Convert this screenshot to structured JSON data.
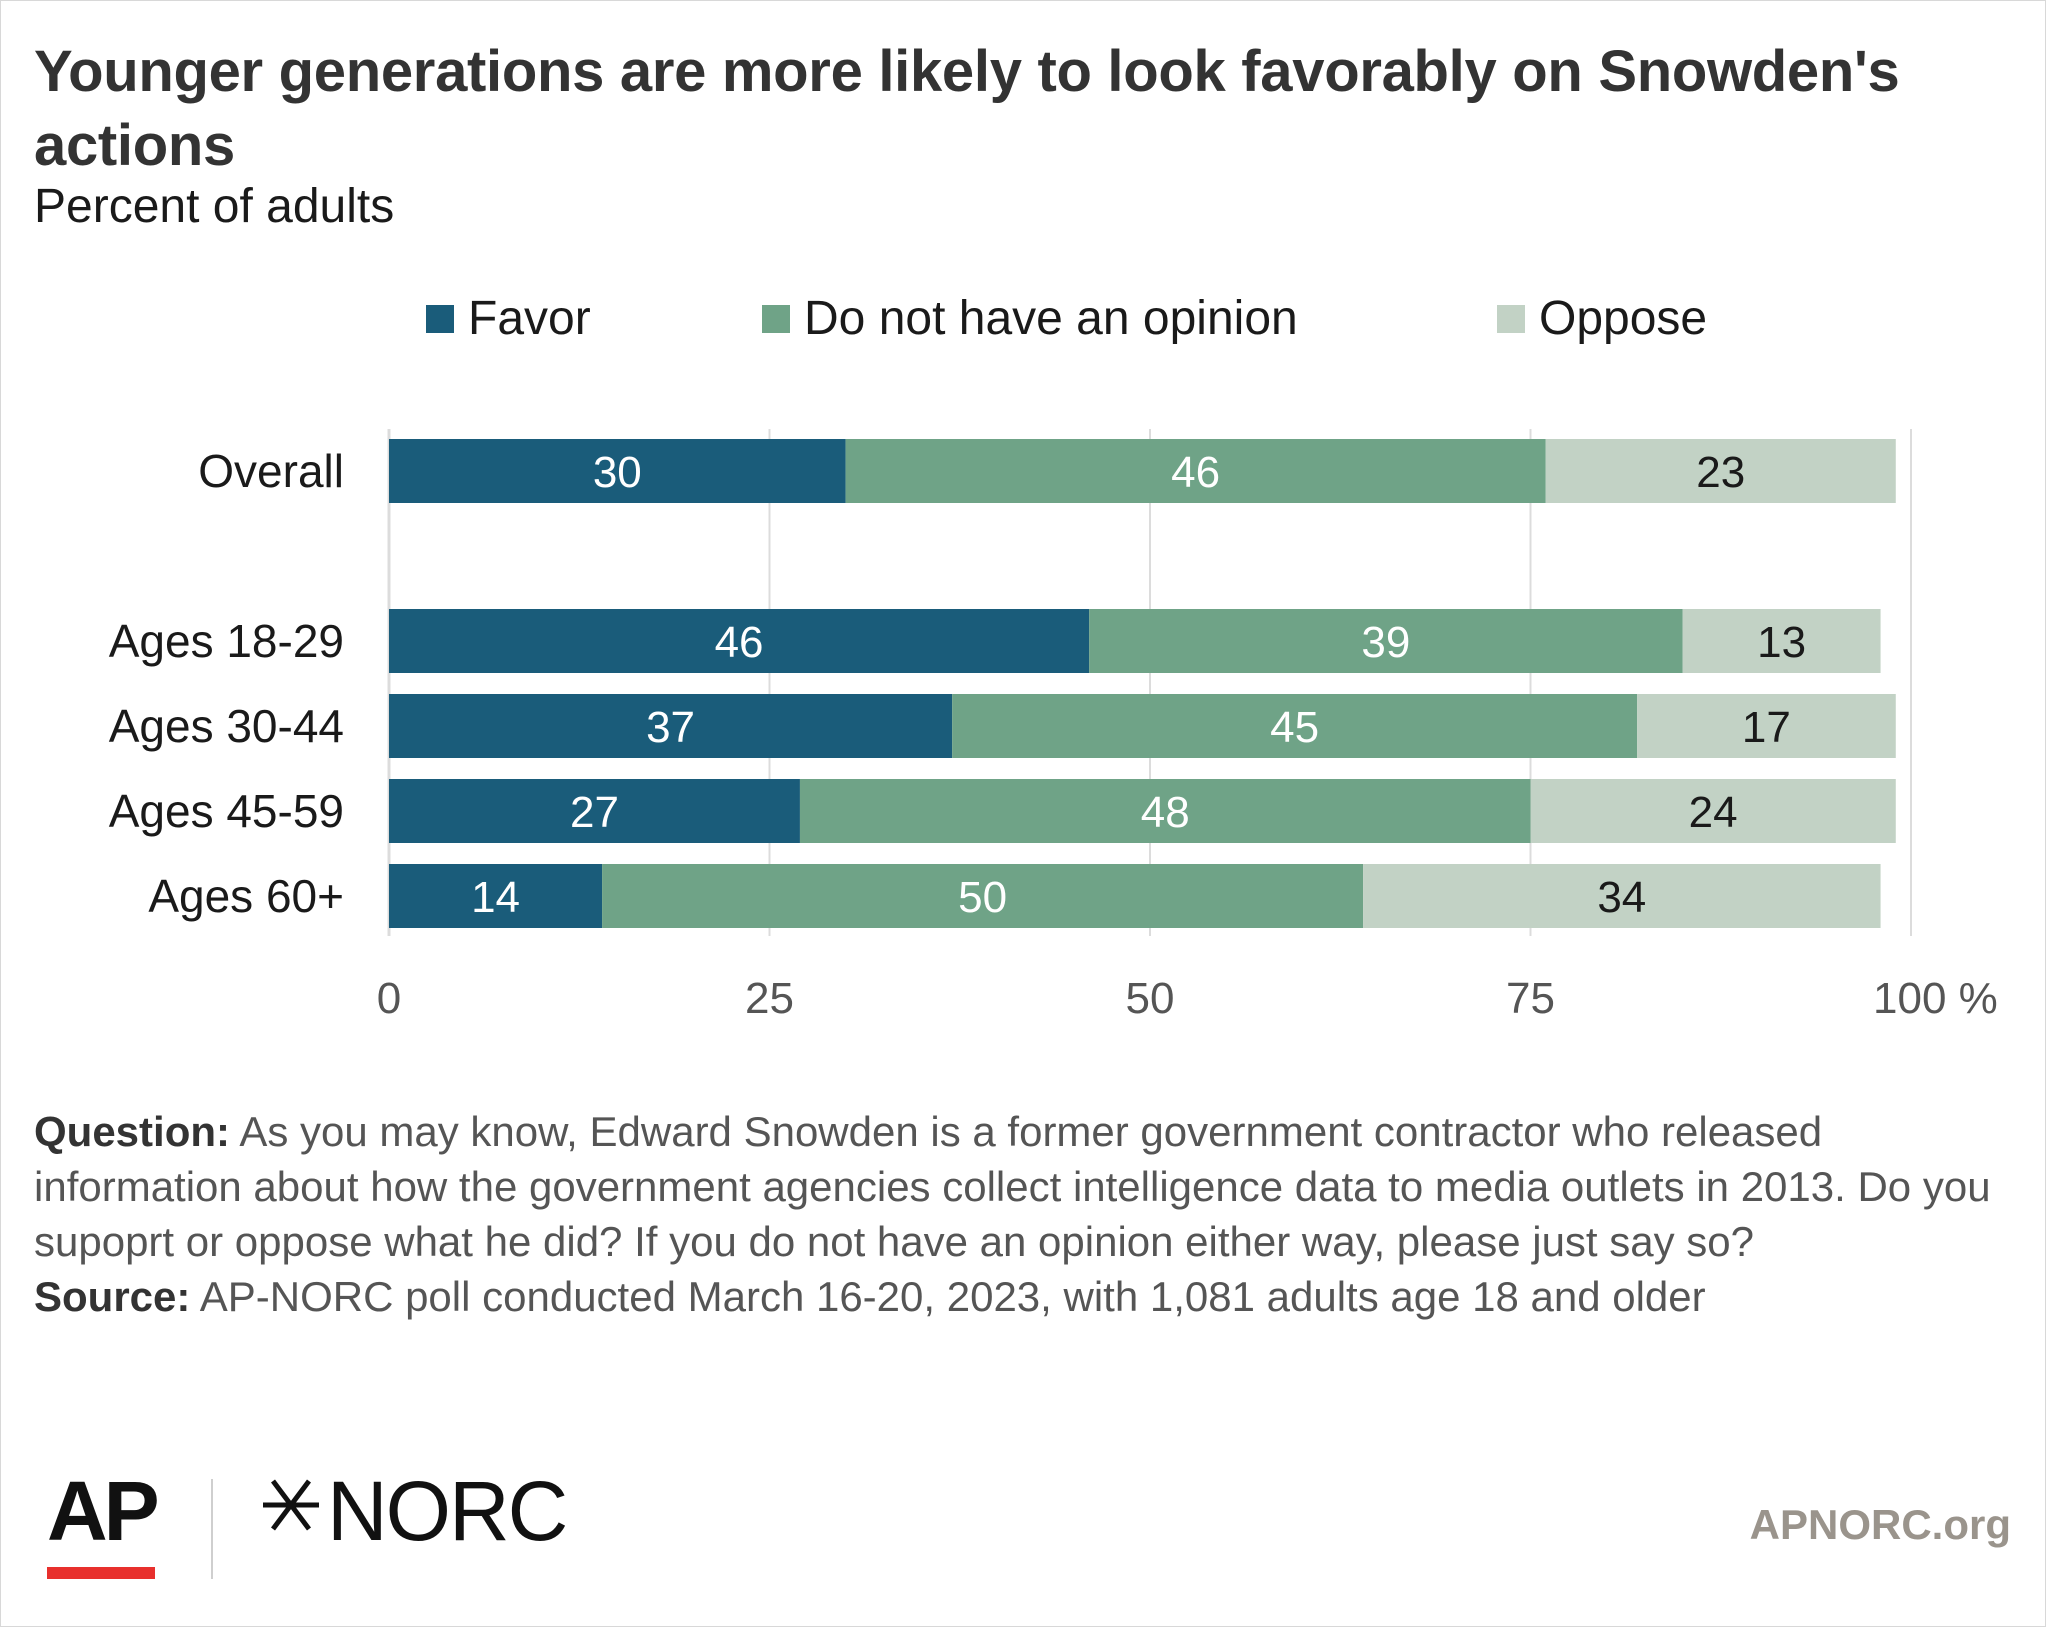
{
  "title": "Younger generations are more likely to look favorably on Snowden's actions",
  "subtitle": "Percent of adults",
  "colors": {
    "favor": "#1a5c7a",
    "no_opinion": "#6fa387",
    "oppose": "#c2d2c5",
    "grid": "#dcdcdc",
    "axis_text": "#555555"
  },
  "chart_data": {
    "type": "bar",
    "orientation": "horizontal",
    "stacked": true,
    "categories": [
      "Overall",
      "Ages 18-29",
      "Ages 30-44",
      "Ages 45-59",
      "Ages 60+"
    ],
    "series": [
      {
        "name": "Favor",
        "values": [
          30,
          46,
          37,
          27,
          14
        ]
      },
      {
        "name": "Do not have an opinion",
        "values": [
          46,
          39,
          45,
          48,
          50
        ]
      },
      {
        "name": "Oppose",
        "values": [
          23,
          13,
          17,
          24,
          34
        ]
      }
    ],
    "xlim": [
      0,
      100
    ],
    "xticks": [
      "0",
      "25",
      "50",
      "75",
      "100 %"
    ],
    "grid": true,
    "legend_position": "top"
  },
  "notes": {
    "question_label": "Question:",
    "question_text": " As you may know, Edward Snowden is a former government contractor who released information about how the government agencies collect intelligence data to media outlets in 2013. Do you supoprt or oppose what he did? If you do not have an opinion either way, please just say so?",
    "source_label": "Source:",
    "source_text": " AP-NORC poll conducted March 16-20, 2023, with 1,081 adults age 18 and older"
  },
  "footer": {
    "ap_logo": "AP",
    "norc_logo": "NORC",
    "url": "APNORC.org"
  }
}
